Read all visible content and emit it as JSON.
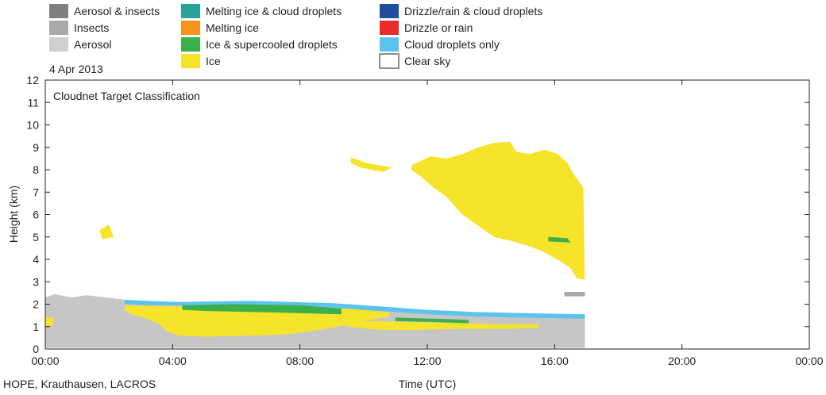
{
  "chart_data": {
    "type": "heatmap",
    "title": "Cloudnet Target Classification",
    "date": "4 Apr 2013",
    "source": "HOPE, Krauthausen, LACROS",
    "xlabel": "Time (UTC)",
    "ylabel": "Height (km)",
    "xlim": [
      0,
      24
    ],
    "ylim": [
      0,
      12
    ],
    "x_ticks": [
      "00:00",
      "04:00",
      "08:00",
      "12:00",
      "16:00",
      "20:00",
      "00:00"
    ],
    "y_ticks": [
      "0",
      "1",
      "2",
      "3",
      "4",
      "5",
      "6",
      "7",
      "8",
      "9",
      "10",
      "11",
      "12"
    ],
    "grid": false,
    "legend": [
      {
        "label": "Aerosol & insects",
        "color": "#7f7f7f"
      },
      {
        "label": "Insects",
        "color": "#a9a9a9"
      },
      {
        "label": "Aerosol",
        "color": "#cfcfcf"
      },
      {
        "label": "Melting ice & cloud droplets",
        "color": "#2aa198"
      },
      {
        "label": "Melting ice",
        "color": "#f7941d"
      },
      {
        "label": "Ice & supercooled droplets",
        "color": "#3cae4a"
      },
      {
        "label": "Ice",
        "color": "#f5e42a"
      },
      {
        "label": "Drizzle/rain & cloud droplets",
        "color": "#1f4e9c"
      },
      {
        "label": "Drizzle or rain",
        "color": "#ee2b2b"
      },
      {
        "label": "Cloud droplets only",
        "color": "#5bc4ee"
      },
      {
        "label": "Clear sky",
        "color": "#ffffff"
      }
    ],
    "regions": [
      {
        "class": "Aerosol",
        "color": "#c6c6c6",
        "points": [
          [
            0,
            0.05
          ],
          [
            0,
            2.3
          ],
          [
            0.3,
            2.45
          ],
          [
            0.8,
            2.3
          ],
          [
            1.3,
            2.4
          ],
          [
            1.9,
            2.3
          ],
          [
            2.5,
            2.2
          ],
          [
            3.5,
            2.05
          ],
          [
            5,
            2.0
          ],
          [
            7,
            2.0
          ],
          [
            9,
            1.95
          ],
          [
            10.5,
            1.8
          ],
          [
            12,
            1.6
          ],
          [
            13.5,
            1.55
          ],
          [
            15,
            1.5
          ],
          [
            16,
            1.45
          ],
          [
            16.95,
            1.45
          ],
          [
            16.95,
            0.05
          ]
        ]
      },
      {
        "class": "Cloud droplets only",
        "color": "#5bc4ee",
        "points": [
          [
            2.5,
            2.2
          ],
          [
            3.2,
            2.15
          ],
          [
            4.2,
            2.1
          ],
          [
            6.5,
            2.15
          ],
          [
            9,
            2.05
          ],
          [
            10.5,
            1.9
          ],
          [
            12,
            1.75
          ],
          [
            13.5,
            1.65
          ],
          [
            15,
            1.6
          ],
          [
            16.95,
            1.55
          ],
          [
            16.95,
            1.35
          ],
          [
            15,
            1.4
          ],
          [
            13.5,
            1.45
          ],
          [
            12,
            1.55
          ],
          [
            10.5,
            1.7
          ],
          [
            9,
            1.8
          ],
          [
            6.5,
            1.9
          ],
          [
            4.2,
            1.95
          ],
          [
            3.2,
            1.95
          ],
          [
            2.5,
            2.0
          ]
        ]
      },
      {
        "class": "Ice",
        "color": "#f5e42a",
        "points": [
          [
            2.5,
            1.95
          ],
          [
            4,
            1.9
          ],
          [
            6,
            1.9
          ],
          [
            8,
            1.85
          ],
          [
            9.5,
            1.8
          ],
          [
            10.8,
            1.65
          ],
          [
            10.8,
            1.45
          ],
          [
            10.2,
            1.3
          ],
          [
            9.6,
            1.15
          ],
          [
            9.2,
            1.0
          ],
          [
            8.4,
            0.8
          ],
          [
            7.6,
            0.65
          ],
          [
            6.5,
            0.6
          ],
          [
            5,
            0.55
          ],
          [
            4.2,
            0.6
          ],
          [
            3.8,
            0.8
          ],
          [
            3.6,
            1.1
          ],
          [
            3.2,
            1.35
          ],
          [
            2.7,
            1.55
          ],
          [
            2.5,
            1.75
          ]
        ]
      },
      {
        "class": "Ice",
        "color": "#f5e42a",
        "points": [
          [
            9.2,
            1.2
          ],
          [
            10.2,
            1.25
          ],
          [
            11.5,
            1.2
          ],
          [
            13,
            1.15
          ],
          [
            14.5,
            1.1
          ],
          [
            15.5,
            1.1
          ],
          [
            15.5,
            0.95
          ],
          [
            14.5,
            0.9
          ],
          [
            13,
            0.9
          ],
          [
            11.5,
            0.85
          ],
          [
            10.5,
            0.85
          ],
          [
            9.5,
            1.0
          ]
        ]
      },
      {
        "class": "Ice & supercooled droplets",
        "color": "#3cae4a",
        "points": [
          [
            4.3,
            1.95
          ],
          [
            6,
            2.0
          ],
          [
            8,
            1.95
          ],
          [
            9.3,
            1.8
          ],
          [
            9.3,
            1.55
          ],
          [
            8,
            1.6
          ],
          [
            6.5,
            1.65
          ],
          [
            5,
            1.7
          ],
          [
            4.3,
            1.75
          ]
        ]
      },
      {
        "class": "Ice & supercooled droplets",
        "color": "#3cae4a",
        "points": [
          [
            11.0,
            1.4
          ],
          [
            12.3,
            1.35
          ],
          [
            13.3,
            1.3
          ],
          [
            13.3,
            1.15
          ],
          [
            12.3,
            1.2
          ],
          [
            11.0,
            1.25
          ]
        ]
      },
      {
        "class": "Ice",
        "color": "#f5e42a",
        "points": [
          [
            0,
            1.0
          ],
          [
            0.25,
            1.05
          ],
          [
            0.25,
            1.4
          ],
          [
            0,
            1.4
          ]
        ]
      },
      {
        "class": "Ice",
        "color": "#f5e42a",
        "points": [
          [
            1.7,
            5.3
          ],
          [
            2.0,
            5.55
          ],
          [
            2.15,
            5.0
          ],
          [
            1.8,
            4.9
          ]
        ]
      },
      {
        "class": "Ice",
        "color": "#f5e42a",
        "points": [
          [
            9.6,
            8.55
          ],
          [
            10.1,
            8.3
          ],
          [
            10.9,
            8.1
          ],
          [
            10.6,
            7.9
          ],
          [
            9.9,
            8.1
          ],
          [
            9.6,
            8.3
          ]
        ]
      },
      {
        "class": "Ice",
        "color": "#f5e42a",
        "points": [
          [
            11.5,
            8.2
          ],
          [
            12.1,
            8.6
          ],
          [
            12.6,
            8.5
          ],
          [
            13.1,
            8.7
          ],
          [
            13.6,
            9.0
          ],
          [
            14.1,
            9.2
          ],
          [
            14.6,
            9.25
          ],
          [
            14.8,
            8.8
          ],
          [
            15.2,
            8.7
          ],
          [
            15.7,
            8.9
          ],
          [
            16.1,
            8.7
          ],
          [
            16.4,
            8.3
          ],
          [
            16.6,
            7.8
          ],
          [
            16.9,
            7.2
          ],
          [
            16.95,
            3.1
          ],
          [
            16.7,
            3.15
          ],
          [
            16.5,
            3.6
          ],
          [
            16.2,
            3.9
          ],
          [
            15.7,
            4.3
          ],
          [
            15.2,
            4.6
          ],
          [
            14.7,
            4.8
          ],
          [
            14.1,
            5.0
          ],
          [
            13.6,
            5.5
          ],
          [
            13.1,
            6.0
          ],
          [
            12.6,
            6.8
          ],
          [
            12.2,
            7.2
          ],
          [
            11.8,
            7.7
          ],
          [
            11.5,
            8.0
          ]
        ]
      },
      {
        "class": "Ice & supercooled droplets",
        "color": "#3cae4a",
        "points": [
          [
            15.8,
            5.0
          ],
          [
            16.4,
            4.95
          ],
          [
            16.5,
            4.75
          ],
          [
            15.8,
            4.8
          ]
        ]
      },
      {
        "class": "Insects",
        "color": "#a9a9a9",
        "points": [
          [
            16.3,
            2.55
          ],
          [
            16.95,
            2.55
          ],
          [
            16.95,
            2.35
          ],
          [
            16.3,
            2.35
          ]
        ]
      }
    ]
  }
}
